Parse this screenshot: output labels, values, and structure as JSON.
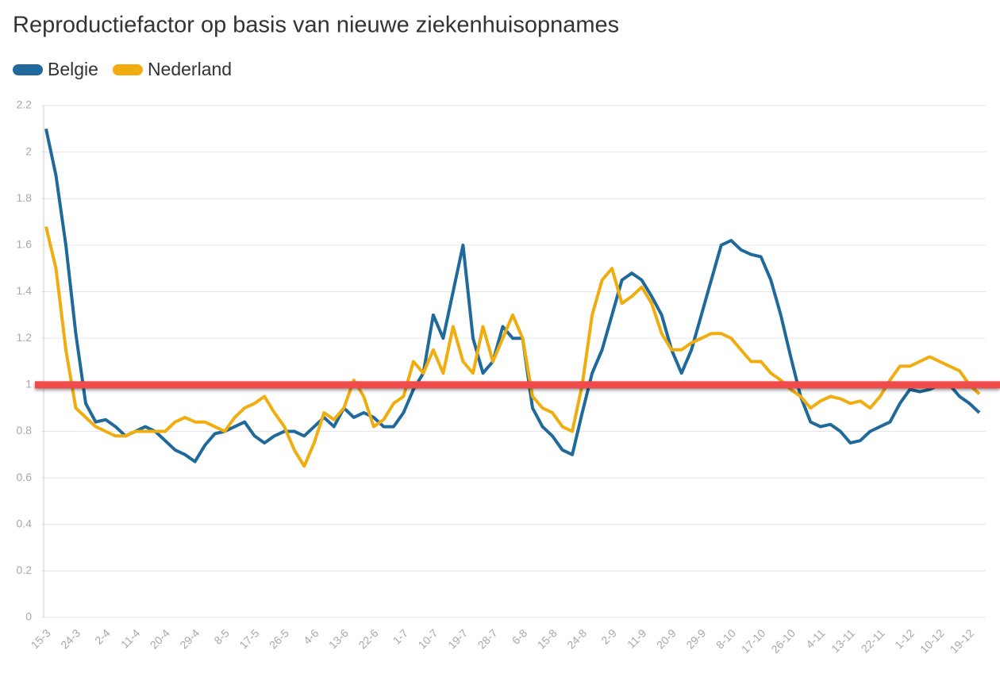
{
  "chart_data": {
    "type": "line",
    "title": "Reproductiefactor op basis van nieuwe ziekenhuisopnames",
    "categories": [
      "15-3",
      null,
      null,
      "24-3",
      null,
      null,
      "2-4",
      null,
      null,
      "11-4",
      null,
      null,
      "20-4",
      null,
      null,
      "29-4",
      null,
      null,
      "8-5",
      null,
      null,
      "17-5",
      null,
      null,
      "26-5",
      null,
      null,
      "4-6",
      null,
      null,
      "13-6",
      null,
      null,
      "22-6",
      null,
      null,
      "1-7",
      null,
      null,
      "10-7",
      null,
      null,
      "19-7",
      null,
      null,
      "28-7",
      null,
      null,
      "6-8",
      null,
      null,
      "15-8",
      null,
      null,
      "24-8",
      null,
      null,
      "2-9",
      null,
      null,
      "11-9",
      null,
      null,
      "20-9",
      null,
      null,
      "29-9",
      null,
      null,
      "8-10",
      null,
      null,
      "17-10",
      null,
      null,
      "26-10",
      null,
      null,
      "4-11",
      null,
      null,
      "13-11",
      null,
      null,
      "22-11",
      null,
      null,
      "1-12",
      null,
      null,
      "10-12",
      null,
      null,
      "19-12",
      null
    ],
    "series": [
      {
        "name": "Belgie",
        "color": "#1f6a9a",
        "values": [
          2.1,
          1.9,
          1.6,
          1.22,
          0.92,
          0.84,
          0.85,
          0.82,
          0.78,
          0.8,
          0.82,
          0.8,
          0.76,
          0.72,
          0.7,
          0.67,
          0.74,
          0.79,
          0.8,
          0.82,
          0.84,
          0.78,
          0.75,
          0.78,
          0.8,
          0.8,
          0.78,
          0.82,
          0.86,
          0.82,
          0.9,
          0.86,
          0.88,
          0.86,
          0.82,
          0.82,
          0.88,
          0.98,
          1.05,
          1.3,
          1.2,
          1.4,
          1.6,
          1.2,
          1.05,
          1.1,
          1.25,
          1.2,
          1.2,
          0.9,
          0.82,
          0.78,
          0.72,
          0.7,
          0.88,
          1.05,
          1.15,
          1.3,
          1.45,
          1.48,
          1.45,
          1.38,
          1.3,
          1.15,
          1.05,
          1.15,
          1.3,
          1.45,
          1.6,
          1.62,
          1.58,
          1.56,
          1.55,
          1.45,
          1.3,
          1.12,
          0.95,
          0.84,
          0.82,
          0.83,
          0.8,
          0.75,
          0.76,
          0.8,
          0.82,
          0.84,
          0.92,
          0.98,
          0.97,
          0.98,
          1.0,
          1.0,
          0.95,
          0.92,
          0.88
        ]
      },
      {
        "name": "Nederland",
        "color": "#f0ad0f",
        "values": [
          1.68,
          1.5,
          1.15,
          0.9,
          0.86,
          0.82,
          0.8,
          0.78,
          0.78,
          0.8,
          0.8,
          0.8,
          0.8,
          0.84,
          0.86,
          0.84,
          0.84,
          0.82,
          0.8,
          0.86,
          0.9,
          0.92,
          0.95,
          0.88,
          0.82,
          0.72,
          0.65,
          0.75,
          0.88,
          0.85,
          0.9,
          1.02,
          0.95,
          0.82,
          0.85,
          0.92,
          0.95,
          1.1,
          1.05,
          1.15,
          1.05,
          1.25,
          1.1,
          1.05,
          1.25,
          1.1,
          1.2,
          1.3,
          1.2,
          0.95,
          0.9,
          0.88,
          0.82,
          0.8,
          1.0,
          1.3,
          1.45,
          1.5,
          1.35,
          1.38,
          1.42,
          1.35,
          1.22,
          1.15,
          1.15,
          1.18,
          1.2,
          1.22,
          1.22,
          1.2,
          1.15,
          1.1,
          1.1,
          1.05,
          1.02,
          0.98,
          0.95,
          0.9,
          0.93,
          0.95,
          0.94,
          0.92,
          0.93,
          0.9,
          0.95,
          1.02,
          1.08,
          1.08,
          1.1,
          1.12,
          1.1,
          1.08,
          1.06,
          1.0,
          0.96
        ]
      }
    ],
    "ylim": [
      0,
      2.2
    ],
    "yticks": [
      0,
      0.2,
      0.4,
      0.6,
      0.8,
      1,
      1.2,
      1.4,
      1.6,
      1.8,
      2,
      2.2
    ],
    "grid": true,
    "reference_line": {
      "value": 1,
      "color": "#f04a4a"
    }
  }
}
